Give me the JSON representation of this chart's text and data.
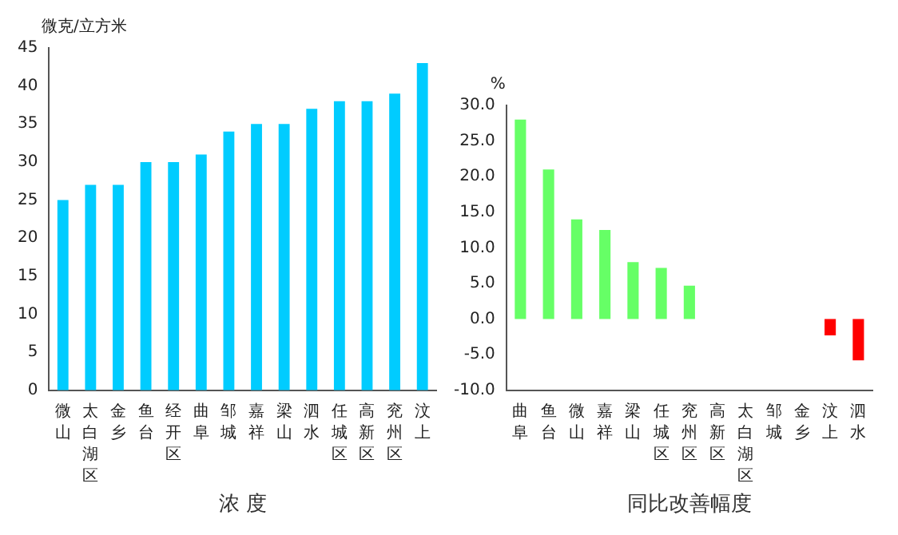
{
  "chart_data": [
    {
      "type": "bar",
      "ylabel": "微克/立方米",
      "xlabel": "浓 度",
      "categories": [
        "微山",
        "太白湖区",
        "金乡",
        "鱼台",
        "经开区",
        "曲阜",
        "邹城",
        "嘉祥",
        "梁山",
        "泗水",
        "任城区",
        "高新区",
        "兖州区",
        "汶上"
      ],
      "values": [
        25,
        27,
        27,
        30,
        30,
        31,
        34,
        35,
        35,
        37,
        38,
        38,
        39,
        43
      ],
      "color": "#00ccff",
      "ylim": [
        0,
        45
      ],
      "yticks": [
        0,
        5,
        10,
        15,
        20,
        25,
        30,
        35,
        40,
        45
      ],
      "grid": false,
      "legend": false
    },
    {
      "type": "bar",
      "ylabel": "%",
      "xlabel": "同比改善幅度",
      "categories": [
        "曲阜",
        "鱼台",
        "微山",
        "嘉祥",
        "梁山",
        "任城区",
        "兖州区",
        "高新区",
        "太白湖区",
        "邹城",
        "金乡",
        "汶上",
        "泗水"
      ],
      "values": [
        28,
        21,
        14,
        12.5,
        8,
        7.2,
        4.7,
        0,
        0,
        0,
        0,
        -2.3,
        -5.8
      ],
      "colors": [
        "#66ff66",
        "#66ff66",
        "#66ff66",
        "#66ff66",
        "#66ff66",
        "#66ff66",
        "#66ff66",
        "#66ff66",
        "#66ff66",
        "#66ff66",
        "#66ff66",
        "#ff0000",
        "#ff0000"
      ],
      "ylim": [
        -10,
        30
      ],
      "yticks": [
        {
          "value": -10,
          "label": "-10.0"
        },
        {
          "value": -5,
          "label": "-5.0"
        },
        {
          "value": 0,
          "label": "0.0"
        },
        {
          "value": 5,
          "label": "5.0"
        },
        {
          "value": 10,
          "label": "10.0"
        },
        {
          "value": 15,
          "label": "15.0"
        },
        {
          "value": 20,
          "label": "20.0"
        },
        {
          "value": 25,
          "label": "25.0"
        },
        {
          "value": 30,
          "label": "30.0"
        }
      ],
      "grid": false,
      "legend": false
    }
  ]
}
